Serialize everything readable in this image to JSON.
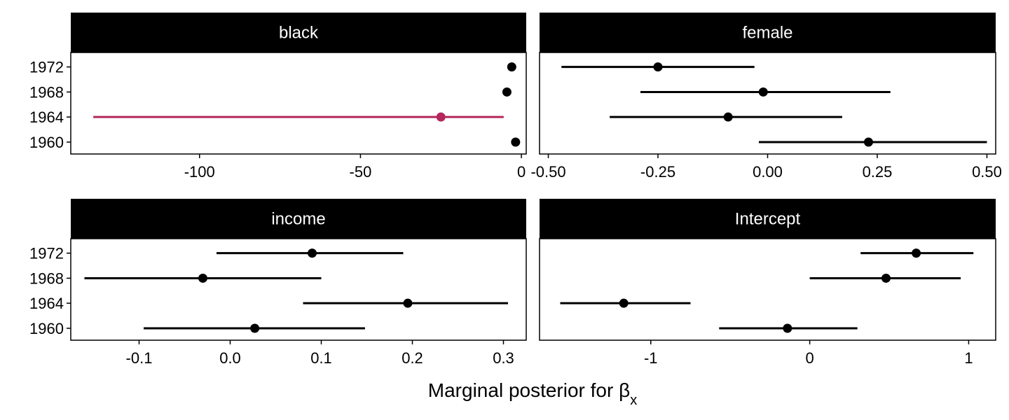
{
  "chart_data": {
    "type": "interval",
    "xlabel": "Marginal posterior for βx",
    "categories": [
      "1960",
      "1964",
      "1968",
      "1972"
    ],
    "highlight_color": "#b5265a",
    "default_color": "#000000",
    "panels": [
      {
        "title": "black",
        "xlim": [
          -140,
          1.5
        ],
        "xticks": [
          -100,
          -50,
          0
        ],
        "xtick_labels": [
          "-100",
          "-50",
          "0"
        ],
        "intervals": [
          {
            "year": "1972",
            "mean": -3,
            "low": -3,
            "high": -3,
            "highlight": false
          },
          {
            "year": "1968",
            "mean": -4.5,
            "low": -4.5,
            "high": -4.5,
            "highlight": false
          },
          {
            "year": "1964",
            "mean": -25,
            "low": -133,
            "high": -5.5,
            "highlight": true
          },
          {
            "year": "1960",
            "mean": -1.8,
            "low": -1.8,
            "high": -1.8,
            "highlight": false
          }
        ]
      },
      {
        "title": "female",
        "xlim": [
          -0.52,
          0.52
        ],
        "xticks": [
          -0.5,
          -0.25,
          0,
          0.25,
          0.5
        ],
        "xtick_labels": [
          "-0.50",
          "-0.25",
          "0.00",
          "0.25",
          "0.50"
        ],
        "intervals": [
          {
            "year": "1972",
            "mean": -0.25,
            "low": -0.47,
            "high": -0.03,
            "highlight": false
          },
          {
            "year": "1968",
            "mean": -0.01,
            "low": -0.29,
            "high": 0.28,
            "highlight": false
          },
          {
            "year": "1964",
            "mean": -0.09,
            "low": -0.36,
            "high": 0.17,
            "highlight": false
          },
          {
            "year": "1960",
            "mean": 0.23,
            "low": -0.02,
            "high": 0.5,
            "highlight": false
          }
        ]
      },
      {
        "title": "income",
        "xlim": [
          -0.175,
          0.325
        ],
        "xticks": [
          -0.1,
          0,
          0.1,
          0.2,
          0.3
        ],
        "xtick_labels": [
          "-0.1",
          "0.0",
          "0.1",
          "0.2",
          "0.3"
        ],
        "intervals": [
          {
            "year": "1972",
            "mean": 0.09,
            "low": -0.015,
            "high": 0.19,
            "highlight": false
          },
          {
            "year": "1968",
            "mean": -0.03,
            "low": -0.16,
            "high": 0.1,
            "highlight": false
          },
          {
            "year": "1964",
            "mean": 0.195,
            "low": 0.08,
            "high": 0.305,
            "highlight": false
          },
          {
            "year": "1960",
            "mean": 0.027,
            "low": -0.095,
            "high": 0.148,
            "highlight": false
          }
        ]
      },
      {
        "title": "Intercept",
        "xlim": [
          -1.7,
          1.17
        ],
        "xticks": [
          -1,
          0,
          1
        ],
        "xtick_labels": [
          "-1",
          "0",
          "1"
        ],
        "intervals": [
          {
            "year": "1972",
            "mean": 0.67,
            "low": 0.32,
            "high": 1.03,
            "highlight": false
          },
          {
            "year": "1968",
            "mean": 0.48,
            "low": 0.0,
            "high": 0.95,
            "highlight": false
          },
          {
            "year": "1964",
            "mean": -1.17,
            "low": -1.57,
            "high": -0.75,
            "highlight": false
          },
          {
            "year": "1960",
            "mean": -0.14,
            "low": -0.57,
            "high": 0.3,
            "highlight": false
          }
        ]
      }
    ]
  }
}
